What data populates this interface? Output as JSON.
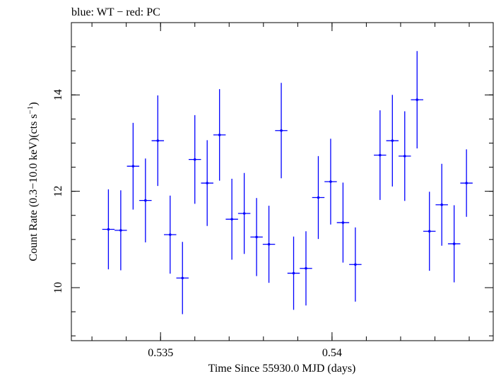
{
  "chart_data": {
    "type": "scatter",
    "title": "blue: WT − red: PC",
    "xlabel": "Time Since 55930.0 MJD (days)",
    "ylabel": "Count Rate (0.3−10.0 keV)(cts s",
    "ylabel_exp": "−1",
    "ylabel_tail": ")",
    "xlim": [
      0.5324,
      0.5447
    ],
    "ylim": [
      8.9,
      15.5
    ],
    "x_ticks": [
      0.535,
      0.54
    ],
    "x_tick_labels": [
      "0.535",
      "0.54"
    ],
    "y_ticks": [
      10,
      12,
      14
    ],
    "y_tick_labels": [
      "10",
      "12",
      "14"
    ],
    "x_minor_step": 0.001,
    "y_minor_step": 0.5,
    "grid": false,
    "series": [
      {
        "color": "#0000ff",
        "points": [
          {
            "x": 0.53348,
            "xerr": 0.00018,
            "y": 11.21,
            "yerr": 0.83
          },
          {
            "x": 0.53384,
            "xerr": 0.00018,
            "y": 11.19,
            "yerr": 0.83
          },
          {
            "x": 0.5342,
            "xerr": 0.00018,
            "y": 12.52,
            "yerr": 0.9
          },
          {
            "x": 0.53456,
            "xerr": 0.00018,
            "y": 11.81,
            "yerr": 0.87
          },
          {
            "x": 0.53492,
            "xerr": 0.00018,
            "y": 13.05,
            "yerr": 0.94
          },
          {
            "x": 0.53528,
            "xerr": 0.00018,
            "y": 11.1,
            "yerr": 0.81
          },
          {
            "x": 0.53564,
            "xerr": 0.00018,
            "y": 10.2,
            "yerr": 0.75
          },
          {
            "x": 0.536,
            "xerr": 0.00018,
            "y": 12.66,
            "yerr": 0.92
          },
          {
            "x": 0.53636,
            "xerr": 0.00018,
            "y": 12.17,
            "yerr": 0.89
          },
          {
            "x": 0.53672,
            "xerr": 0.00018,
            "y": 13.17,
            "yerr": 0.95
          },
          {
            "x": 0.53708,
            "xerr": 0.00018,
            "y": 11.42,
            "yerr": 0.84
          },
          {
            "x": 0.53744,
            "xerr": 0.00018,
            "y": 11.54,
            "yerr": 0.84
          },
          {
            "x": 0.5378,
            "xerr": 0.00018,
            "y": 11.05,
            "yerr": 0.81
          },
          {
            "x": 0.53816,
            "xerr": 0.00018,
            "y": 10.9,
            "yerr": 0.8
          },
          {
            "x": 0.53852,
            "xerr": 0.00018,
            "y": 13.26,
            "yerr": 0.99
          },
          {
            "x": 0.53888,
            "xerr": 0.00018,
            "y": 10.3,
            "yerr": 0.76
          },
          {
            "x": 0.53924,
            "xerr": 0.00018,
            "y": 10.4,
            "yerr": 0.77
          },
          {
            "x": 0.5396,
            "xerr": 0.00018,
            "y": 11.87,
            "yerr": 0.86
          },
          {
            "x": 0.53996,
            "xerr": 0.00018,
            "y": 12.2,
            "yerr": 0.89
          },
          {
            "x": 0.54032,
            "xerr": 0.00018,
            "y": 11.35,
            "yerr": 0.83
          },
          {
            "x": 0.54068,
            "xerr": 0.00018,
            "y": 10.48,
            "yerr": 0.77
          },
          {
            "x": 0.5414,
            "xerr": 0.00018,
            "y": 12.75,
            "yerr": 0.93
          },
          {
            "x": 0.54176,
            "xerr": 0.00018,
            "y": 13.05,
            "yerr": 0.95
          },
          {
            "x": 0.54212,
            "xerr": 0.00018,
            "y": 12.73,
            "yerr": 0.93
          },
          {
            "x": 0.54248,
            "xerr": 0.00018,
            "y": 13.9,
            "yerr": 1.01
          },
          {
            "x": 0.54284,
            "xerr": 0.00018,
            "y": 11.17,
            "yerr": 0.82
          },
          {
            "x": 0.5432,
            "xerr": 0.00018,
            "y": 11.72,
            "yerr": 0.85
          },
          {
            "x": 0.54356,
            "xerr": 0.00018,
            "y": 10.91,
            "yerr": 0.8
          },
          {
            "x": 0.54392,
            "xerr": 0.00018,
            "y": 12.17,
            "yerr": 0.7
          }
        ]
      }
    ]
  }
}
